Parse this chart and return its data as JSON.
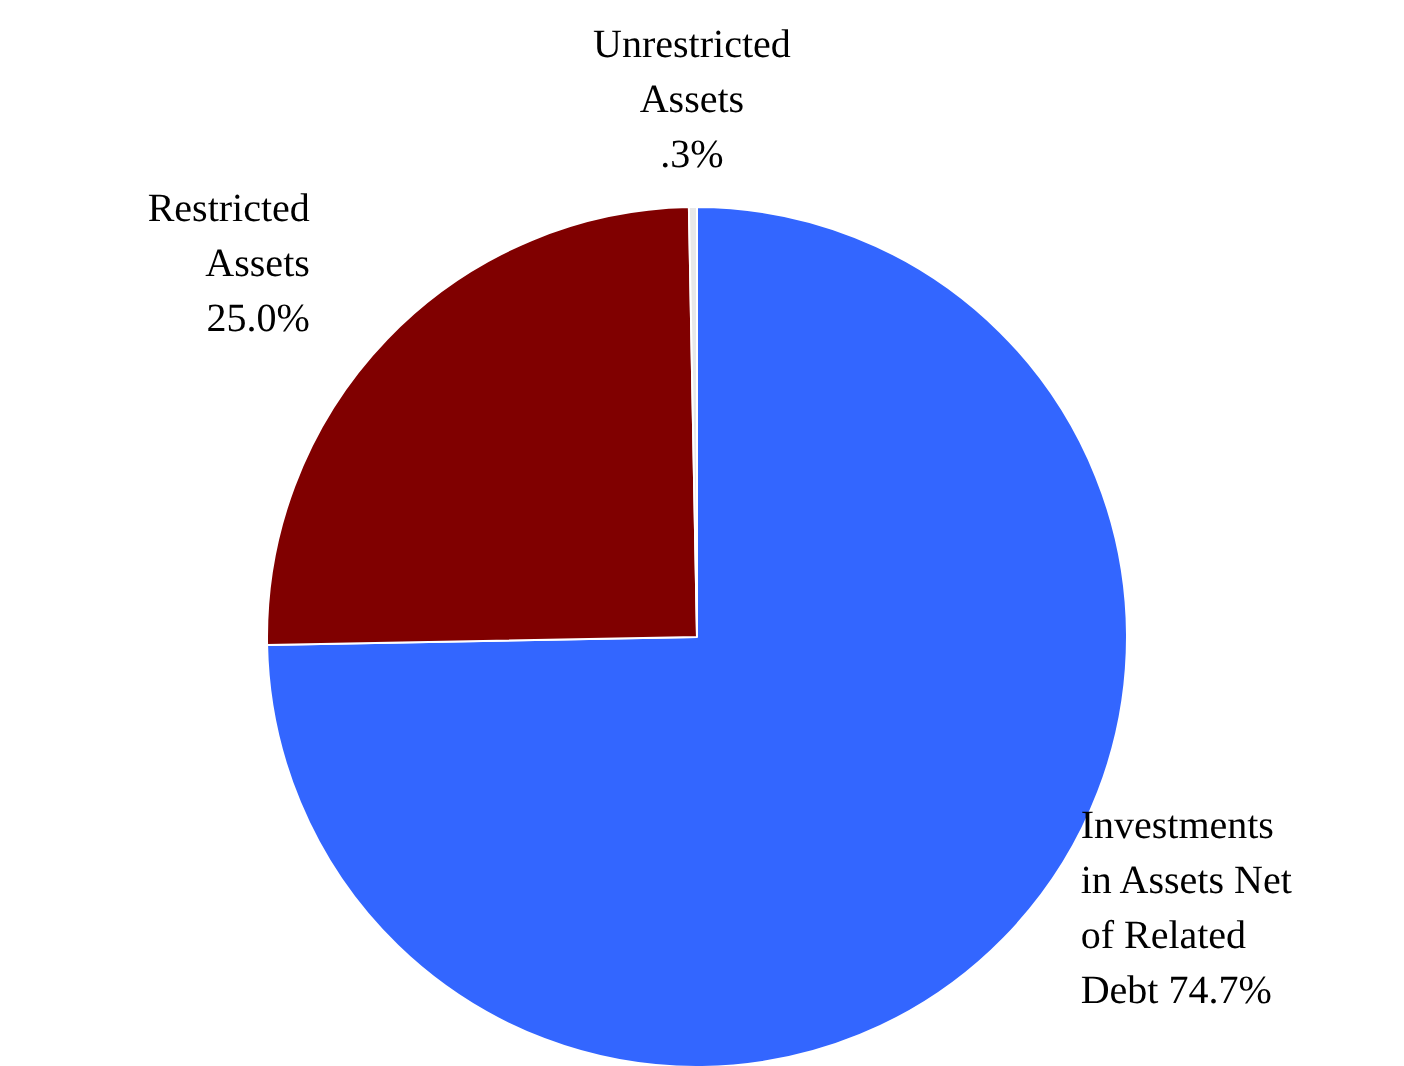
{
  "chart_data": {
    "type": "pie",
    "categories": [
      "Investments in Assets Net of Related Debt",
      "Restricted Assets",
      "Unrestricted Assets"
    ],
    "values": [
      74.7,
      25.0,
      0.3
    ],
    "value_labels": [
      "74.7%",
      "25.0%",
      ".3%"
    ],
    "colors": [
      "#3366ff",
      "#800000",
      "#e8e8e8"
    ]
  }
}
